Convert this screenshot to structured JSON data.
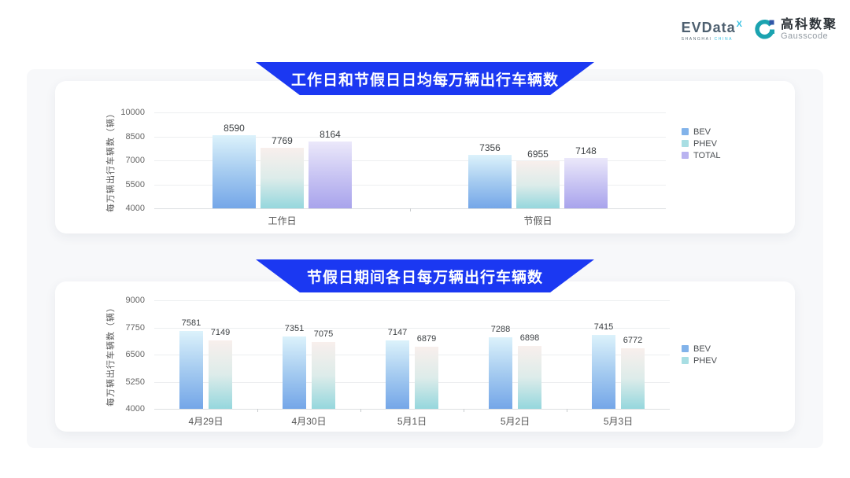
{
  "logo": {
    "evdata_word": "EVData",
    "evdata_sup": "X",
    "evdata_tagline_1": "SHANGHAI",
    "evdata_tagline_2": "CHINA",
    "gausscode_cn": "高科数聚",
    "gausscode_en": "Gausscode"
  },
  "colors": {
    "banner_blue": "#1b38f2",
    "panel_bg": "#f7f8fa",
    "card_bg": "#ffffff",
    "evdata_text": "#4e6070",
    "evdata_accent": "#38c1e3",
    "gausscode_teal": "#1ba3b0",
    "gausscode_darkblue": "#3157a8",
    "series": {
      "BEV": {
        "gradient": [
          "#dcf2fb",
          "#a5cbf0",
          "#74a6e8"
        ],
        "legend": "#82b3ea"
      },
      "PHEV": {
        "gradient": [
          "#f8efec",
          "#ddecea",
          "#95d7dd"
        ],
        "legend": "#a8dee3"
      },
      "TOTAL": {
        "gradient": [
          "#ebe8fa",
          "#c9c5f3",
          "#a8a3ec"
        ],
        "legend": "#b9b3f0"
      }
    }
  },
  "chart_data": [
    {
      "type": "bar",
      "title": "工作日和节假日日均每万辆出行车辆数",
      "ylabel": "每万辆出行车辆数（辆）",
      "ylim": [
        4000,
        10000
      ],
      "yticks": [
        4000,
        5500,
        7000,
        8500,
        10000
      ],
      "categories": [
        "工作日",
        "节假日"
      ],
      "series": [
        {
          "name": "BEV",
          "values": [
            8590,
            7356
          ]
        },
        {
          "name": "PHEV",
          "values": [
            7769,
            6955
          ]
        },
        {
          "name": "TOTAL",
          "values": [
            8164,
            7148
          ]
        }
      ],
      "legend": [
        "BEV",
        "PHEV",
        "TOTAL"
      ],
      "legend_position": "right",
      "grid": true
    },
    {
      "type": "bar",
      "title": "节假日期间各日每万辆出行车辆数",
      "ylabel": "每万辆出行车辆数（辆）",
      "ylim": [
        4000,
        9000
      ],
      "yticks": [
        4000,
        5250,
        6500,
        7750,
        9000
      ],
      "categories": [
        "4月29日",
        "4月30日",
        "5月1日",
        "5月2日",
        "5月3日"
      ],
      "series": [
        {
          "name": "BEV",
          "values": [
            7581,
            7351,
            7147,
            7288,
            7415
          ]
        },
        {
          "name": "PHEV",
          "values": [
            7149,
            7075,
            6879,
            6898,
            6772
          ]
        }
      ],
      "legend": [
        "BEV",
        "PHEV"
      ],
      "legend_position": "right",
      "grid": true
    }
  ]
}
